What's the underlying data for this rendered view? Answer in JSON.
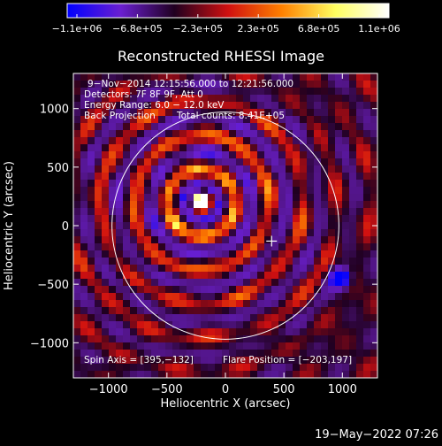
{
  "chart_data": {
    "type": "heatmap",
    "title": "Reconstructed RHESSI Image",
    "xlabel": "Heliocentric X (arcsec)",
    "ylabel": "Heliocentric Y (arcsec)",
    "xlim": [
      -1300,
      1300
    ],
    "ylim": [
      -1300,
      1300
    ],
    "x_ticks": [
      -1000,
      -500,
      0,
      500,
      1000
    ],
    "y_ticks": [
      -1000,
      -500,
      0,
      500,
      1000
    ],
    "x_tick_labels": [
      "−1000",
      "−500",
      "0",
      "500",
      "1000"
    ],
    "y_tick_labels": [
      "−1000",
      "−500",
      "0",
      "500",
      "1000"
    ],
    "colorbar": {
      "min": -1100000,
      "max": 1100000,
      "tick_labels": [
        "−1.1e+06",
        "−6.8e+05",
        "−2.3e+05",
        "2.3e+05",
        "6.8e+05",
        "1.1e+06"
      ],
      "colors": [
        "#0000ff",
        "#6a1fd0",
        "#200020",
        "#d01010",
        "#ff8000",
        "#ffff60",
        "#ffffff"
      ]
    },
    "annotations": {
      "line1": "9−Nov−2014 12:15:56.000 to 12:21:56.000",
      "line2": "Detectors: 7F 8F 9F, Att 0",
      "line3": "Energy Range: 6.0 − 12.0 keV",
      "line4_left": "Back Projection",
      "line4_right": "Total counts: 8.41E+05",
      "bottom_left": "Spin Axis = [395,−132]",
      "bottom_right": "Flare Position = [−203,197]"
    },
    "sources": [
      {
        "label": "bright source",
        "x": -203,
        "y": 197,
        "sign": "positive",
        "peak": 1100000
      },
      {
        "label": "negative lobe",
        "x": 980,
        "y": -450,
        "sign": "negative",
        "peak": -1100000
      }
    ],
    "spin_axis": [
      395,
      -132
    ],
    "solar_disk_radius": 970,
    "solar_disk_center": [
      0,
      0
    ]
  },
  "footer": {
    "date": "19−May−2022 07:26"
  }
}
